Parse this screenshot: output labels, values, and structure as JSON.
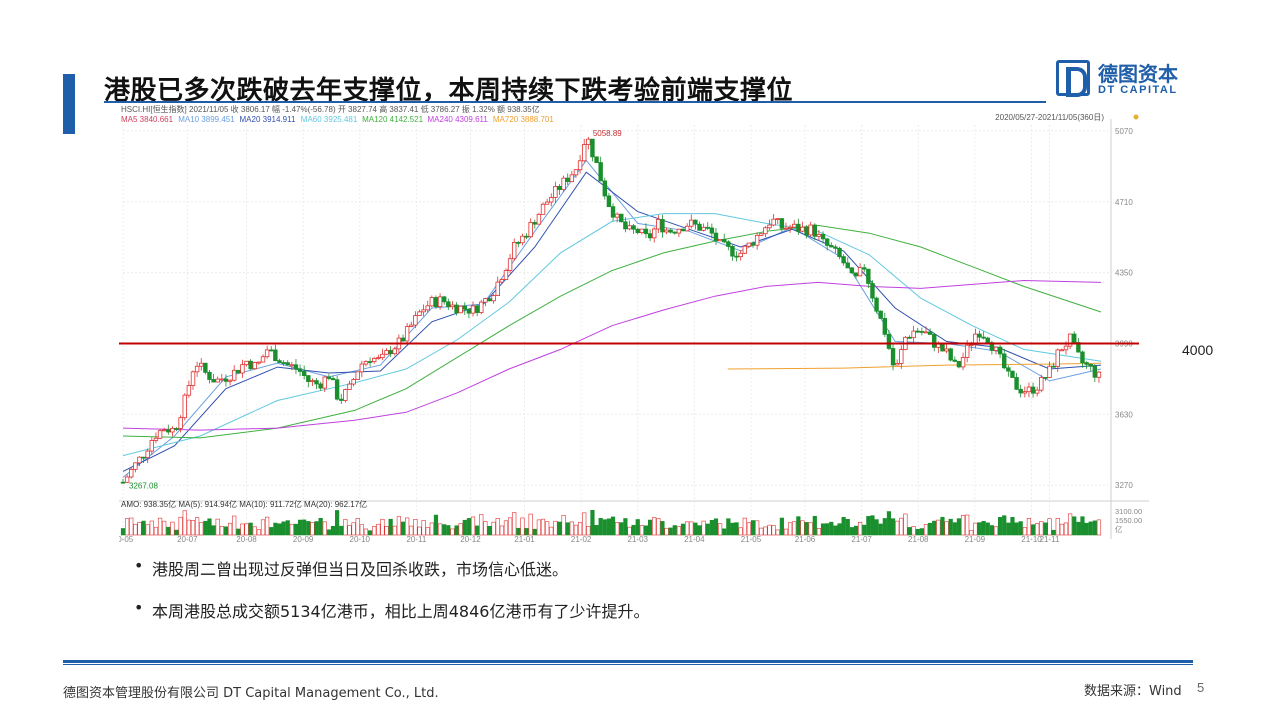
{
  "slide": {
    "title": "港股已多次跌破去年支撑位，本周持续下跌考验前端支撑位",
    "logo_cn": "德图资本",
    "logo_en": "DT CAPITAL",
    "bullets": [
      "港股周二曾出现过反弹但当日及回杀收跌，市场信心低迷。",
      "本周港股总成交额5134亿港币，相比上周4846亿港币有了少许提升。"
    ],
    "footer_company": "德图资本管理股份有限公司  DT Capital Management Co., Ltd.",
    "footer_source": "数据来源：Wind",
    "page_number": "5",
    "colors": {
      "brand": "#1f5ea8",
      "support_line": "#c00000",
      "up": "#e03030",
      "down": "#1a8f2e"
    }
  },
  "chart_data": {
    "type": "line",
    "instrument_header": "HSCI.HI[恒生指数]  2021/11/05  收 3806.17  幅 -1.47%(-56.78)  开 3827.74  高 3837.41  低 3786.27  振 1.32%  额 938.35亿",
    "ma_header": [
      {
        "label": "MA5 3840.661",
        "color": "#d04060"
      },
      {
        "label": "MA10 3899.451",
        "color": "#6aa0e0"
      },
      {
        "label": "MA20 3914.911",
        "color": "#3050b0"
      },
      {
        "label": "MA60 3925.481",
        "color": "#60c8e0"
      },
      {
        "label": "MA120 4142.521",
        "color": "#40b040"
      },
      {
        "label": "MA240 4309.611",
        "color": "#c040e0"
      },
      {
        "label": "MA720 3888.701",
        "color": "#f0a030"
      }
    ],
    "range_label": "2020/05/27-2021/11/05(360日)",
    "ylim": [
      3220,
      5100
    ],
    "y_ticks": [
      "5070",
      "4710",
      "4350",
      "3990",
      "3630",
      "3270"
    ],
    "x_ticks": [
      "20-05",
      "20-07",
      "20-08",
      "20-09",
      "20-10",
      "20-11",
      "20-12",
      "21-01",
      "21-02",
      "21-03",
      "21-04",
      "21-05",
      "21-06",
      "21-07",
      "21-08",
      "21-09",
      "21-10",
      "21-11"
    ],
    "x_tick_positions": [
      0,
      25,
      48,
      70,
      92,
      114,
      135,
      156,
      178,
      200,
      222,
      244,
      265,
      287,
      309,
      331,
      353,
      360
    ],
    "max_label": "5058.89",
    "min_label": "3267.08",
    "support_line": {
      "value": 3990,
      "label": "4000"
    },
    "close_path": [
      [
        0,
        3285
      ],
      [
        4,
        3360
      ],
      [
        8,
        3430
      ],
      [
        12,
        3520
      ],
      [
        16,
        3560
      ],
      [
        20,
        3550
      ],
      [
        24,
        3700
      ],
      [
        28,
        3900
      ],
      [
        32,
        3840
      ],
      [
        36,
        3800
      ],
      [
        40,
        3820
      ],
      [
        44,
        3850
      ],
      [
        48,
        3900
      ],
      [
        52,
        3870
      ],
      [
        56,
        3960
      ],
      [
        60,
        3920
      ],
      [
        64,
        3880
      ],
      [
        68,
        3860
      ],
      [
        72,
        3800
      ],
      [
        76,
        3780
      ],
      [
        80,
        3830
      ],
      [
        84,
        3700
      ],
      [
        88,
        3760
      ],
      [
        92,
        3880
      ],
      [
        96,
        3920
      ],
      [
        100,
        3900
      ],
      [
        104,
        3960
      ],
      [
        108,
        4000
      ],
      [
        112,
        4080
      ],
      [
        116,
        4160
      ],
      [
        120,
        4200
      ],
      [
        124,
        4210
      ],
      [
        128,
        4180
      ],
      [
        132,
        4170
      ],
      [
        136,
        4160
      ],
      [
        140,
        4200
      ],
      [
        144,
        4260
      ],
      [
        148,
        4360
      ],
      [
        152,
        4480
      ],
      [
        156,
        4540
      ],
      [
        160,
        4620
      ],
      [
        164,
        4700
      ],
      [
        168,
        4760
      ],
      [
        172,
        4820
      ],
      [
        176,
        4880
      ],
      [
        180,
        5050
      ],
      [
        184,
        4900
      ],
      [
        188,
        4720
      ],
      [
        192,
        4620
      ],
      [
        196,
        4560
      ],
      [
        200,
        4560
      ],
      [
        204,
        4520
      ],
      [
        208,
        4600
      ],
      [
        212,
        4560
      ],
      [
        216,
        4580
      ],
      [
        220,
        4600
      ],
      [
        224,
        4580
      ],
      [
        228,
        4560
      ],
      [
        232,
        4490
      ],
      [
        236,
        4460
      ],
      [
        240,
        4450
      ],
      [
        244,
        4500
      ],
      [
        248,
        4560
      ],
      [
        252,
        4620
      ],
      [
        256,
        4580
      ],
      [
        260,
        4580
      ],
      [
        264,
        4570
      ],
      [
        268,
        4570
      ],
      [
        272,
        4500
      ],
      [
        276,
        4460
      ],
      [
        280,
        4400
      ],
      [
        284,
        4300
      ],
      [
        288,
        4380
      ],
      [
        292,
        4200
      ],
      [
        296,
        4050
      ],
      [
        300,
        3840
      ],
      [
        304,
        4020
      ],
      [
        308,
        4060
      ],
      [
        312,
        4040
      ],
      [
        316,
        3980
      ],
      [
        320,
        3940
      ],
      [
        324,
        3860
      ],
      [
        328,
        3960
      ],
      [
        332,
        4060
      ],
      [
        336,
        4020
      ],
      [
        340,
        3930
      ],
      [
        344,
        3820
      ],
      [
        348,
        3760
      ],
      [
        352,
        3750
      ],
      [
        356,
        3780
      ],
      [
        360,
        3850
      ],
      [
        364,
        3960
      ],
      [
        368,
        4010
      ],
      [
        372,
        3900
      ],
      [
        376,
        3860
      ],
      [
        380,
        3810
      ]
    ],
    "ma_series": [
      {
        "name": "MA10",
        "color": "#6aa0e0",
        "points": [
          [
            0,
            3310
          ],
          [
            20,
            3520
          ],
          [
            40,
            3820
          ],
          [
            60,
            3890
          ],
          [
            80,
            3820
          ],
          [
            100,
            3880
          ],
          [
            120,
            4170
          ],
          [
            140,
            4190
          ],
          [
            160,
            4560
          ],
          [
            180,
            4920
          ],
          [
            200,
            4600
          ],
          [
            220,
            4560
          ],
          [
            240,
            4460
          ],
          [
            260,
            4580
          ],
          [
            280,
            4420
          ],
          [
            300,
            4000
          ],
          [
            320,
            3990
          ],
          [
            340,
            3950
          ],
          [
            360,
            3800
          ],
          [
            380,
            3860
          ]
        ]
      },
      {
        "name": "MA20",
        "color": "#3050b0",
        "points": [
          [
            0,
            3340
          ],
          [
            20,
            3470
          ],
          [
            40,
            3760
          ],
          [
            60,
            3870
          ],
          [
            80,
            3840
          ],
          [
            100,
            3850
          ],
          [
            120,
            4100
          ],
          [
            140,
            4190
          ],
          [
            160,
            4480
          ],
          [
            180,
            4860
          ],
          [
            200,
            4660
          ],
          [
            220,
            4570
          ],
          [
            240,
            4480
          ],
          [
            260,
            4570
          ],
          [
            280,
            4460
          ],
          [
            300,
            4170
          ],
          [
            320,
            4000
          ],
          [
            340,
            3970
          ],
          [
            360,
            3860
          ],
          [
            380,
            3880
          ]
        ]
      },
      {
        "name": "MA60",
        "color": "#60c8e0",
        "points": [
          [
            0,
            3420
          ],
          [
            30,
            3520
          ],
          [
            60,
            3700
          ],
          [
            90,
            3790
          ],
          [
            110,
            3860
          ],
          [
            130,
            4010
          ],
          [
            150,
            4200
          ],
          [
            170,
            4450
          ],
          [
            190,
            4610
          ],
          [
            210,
            4650
          ],
          [
            230,
            4650
          ],
          [
            250,
            4600
          ],
          [
            270,
            4560
          ],
          [
            290,
            4440
          ],
          [
            310,
            4220
          ],
          [
            330,
            4080
          ],
          [
            350,
            3960
          ],
          [
            380,
            3900
          ]
        ]
      },
      {
        "name": "MA120",
        "color": "#40b040",
        "points": [
          [
            0,
            3520
          ],
          [
            30,
            3510
          ],
          [
            60,
            3560
          ],
          [
            90,
            3650
          ],
          [
            110,
            3760
          ],
          [
            130,
            3920
          ],
          [
            150,
            4080
          ],
          [
            170,
            4230
          ],
          [
            190,
            4360
          ],
          [
            210,
            4450
          ],
          [
            230,
            4510
          ],
          [
            250,
            4560
          ],
          [
            270,
            4590
          ],
          [
            290,
            4550
          ],
          [
            310,
            4480
          ],
          [
            330,
            4380
          ],
          [
            350,
            4280
          ],
          [
            380,
            4150
          ]
        ]
      },
      {
        "name": "MA240",
        "color": "#c040e0",
        "points": [
          [
            0,
            3560
          ],
          [
            30,
            3550
          ],
          [
            60,
            3560
          ],
          [
            90,
            3600
          ],
          [
            110,
            3640
          ],
          [
            130,
            3740
          ],
          [
            150,
            3860
          ],
          [
            170,
            3960
          ],
          [
            190,
            4080
          ],
          [
            210,
            4160
          ],
          [
            230,
            4230
          ],
          [
            250,
            4280
          ],
          [
            270,
            4300
          ],
          [
            290,
            4280
          ],
          [
            310,
            4270
          ],
          [
            330,
            4290
          ],
          [
            350,
            4310
          ],
          [
            380,
            4300
          ]
        ]
      },
      {
        "name": "MA720",
        "color": "#f0a030",
        "points": [
          [
            235,
            3860
          ],
          [
            280,
            3865
          ],
          [
            320,
            3880
          ],
          [
            360,
            3885
          ],
          [
            380,
            3889
          ]
        ]
      }
    ],
    "volume_label": "AMO: 938.35亿 MA(5): 914.94亿 MA(10): 911.72亿 MA(20): 962.17亿",
    "volume_ticks": [
      "3100.00",
      "1550.00"
    ],
    "volume_unit": "亿"
  }
}
